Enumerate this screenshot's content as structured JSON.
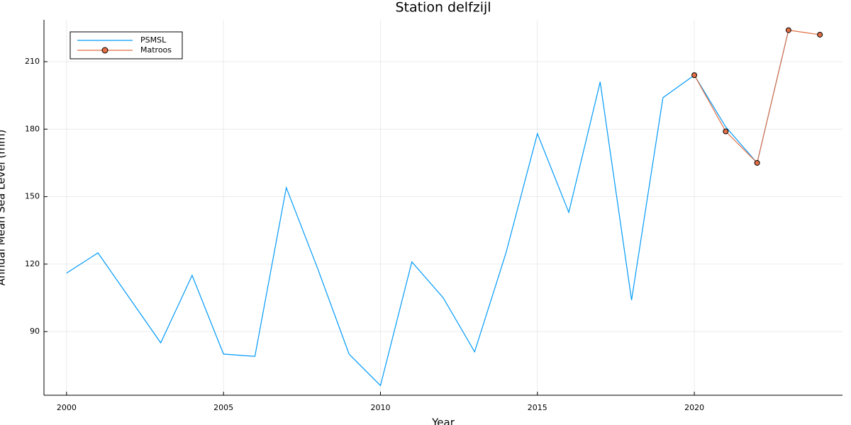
{
  "chart_data": {
    "type": "line",
    "title": "Station delfzijl",
    "x_label": "Year",
    "y_label": "Annual Mean Sea Level (mm)",
    "series": [
      {
        "name": "PSMSL",
        "color": "#009af9",
        "marker": false,
        "x": [
          2000,
          2001,
          2002,
          2003,
          2004,
          2005,
          2006,
          2007,
          2008,
          2009,
          2010,
          2011,
          2012,
          2013,
          2014,
          2015,
          2016,
          2017,
          2018,
          2019,
          2020,
          2021,
          2022,
          2023
        ],
        "values": [
          116,
          125,
          105,
          85,
          115,
          80,
          79,
          154,
          118,
          80,
          66,
          121,
          105,
          81,
          125,
          178,
          143,
          201,
          104,
          194,
          204,
          181,
          165,
          224
        ]
      },
      {
        "name": "Matroos",
        "color": "#e26f46",
        "marker": true,
        "x": [
          2020,
          2021,
          2022,
          2023,
          2024
        ],
        "values": [
          204,
          179,
          165,
          224,
          222
        ]
      }
    ],
    "xlim": [
      1999.28,
      2024.72
    ],
    "ylim": [
      61.7,
      228.6
    ],
    "xticks": [
      2000,
      2005,
      2010,
      2015,
      2020
    ],
    "yticks": [
      90,
      120,
      150,
      180,
      210
    ],
    "grid": true,
    "legend": "top-left"
  }
}
